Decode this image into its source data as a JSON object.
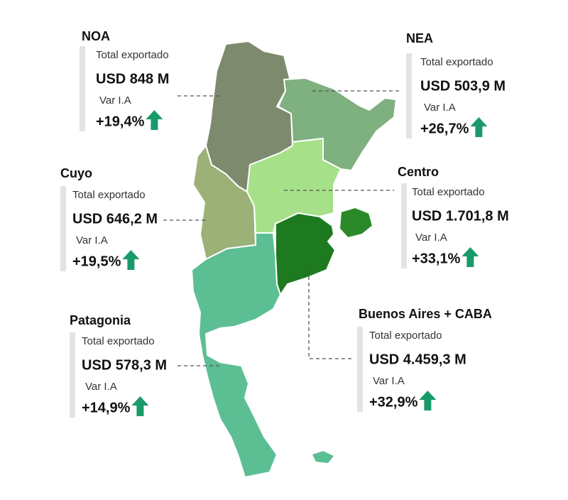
{
  "regions": [
    {
      "name": "NOA",
      "total_label": "Total exportado",
      "total": "USD 848 M",
      "var_label": "Var I.A",
      "var": "+19,4%"
    },
    {
      "name": "NEA",
      "total_label": "Total exportado",
      "total": "USD 503,9 M",
      "var_label": "Var I.A",
      "var": "+26,7%"
    },
    {
      "name": "Cuyo",
      "total_label": "Total exportado",
      "total": "USD  646,2 M",
      "var_label": "Var I.A",
      "var": "+19,5%"
    },
    {
      "name": "Centro",
      "total_label": "Total exportado",
      "total": "USD 1.701,8 M",
      "var_label": "Var I.A",
      "var": "+33,1%"
    },
    {
      "name": "Patagonia",
      "total_label": "Total exportado",
      "total": "USD 578,3 M",
      "var_label": "Var I.A",
      "var": "+14,9%"
    },
    {
      "name": "Buenos Aires + CABA",
      "total_label": "Total exportado",
      "total": "USD 4.459,3 M",
      "var_label": "Var I.A",
      "var": "+32,9%"
    }
  ]
}
